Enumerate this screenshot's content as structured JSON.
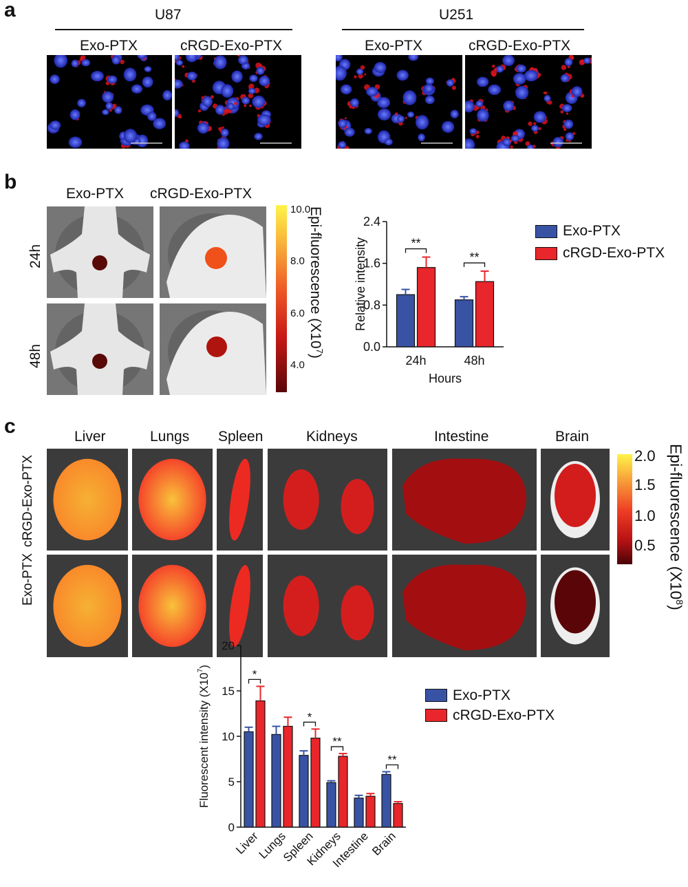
{
  "panel_a": {
    "letter": "a",
    "groups": [
      {
        "cell_line": "U87",
        "conditions": [
          "Exo-PTX",
          "cRGD-Exo-PTX"
        ]
      },
      {
        "cell_line": "U251",
        "conditions": [
          "Exo-PTX",
          "cRGD-Exo-PTX"
        ]
      }
    ]
  },
  "panel_b": {
    "letter": "b",
    "columns": [
      "Exo-PTX",
      "cRGD-Exo-PTX"
    ],
    "rows": [
      "24h",
      "48h"
    ],
    "colorbar": {
      "label": "Epi-fluorescence (X10",
      "exp": "7",
      "close": ")",
      "ticks": [
        "10.0",
        "8.0",
        "6.0",
        "4.0"
      ]
    },
    "legend": [
      "Exo-PTX",
      "cRGD-Exo-PTX"
    ]
  },
  "panel_c": {
    "letter": "c",
    "organs": [
      "Liver",
      "Lungs",
      "Spleen",
      "Kidneys",
      "Intestine",
      "Brain"
    ],
    "rows": [
      "cRGD-Exo-PTX",
      "Exo-PTX"
    ],
    "colorbar": {
      "label": "Epi-fluorescence (X10",
      "exp": "8",
      "close": ")",
      "ticks": [
        "2.0",
        "1.5",
        "1.0",
        "0.5"
      ]
    },
    "legend": [
      "Exo-PTX",
      "cRGD-Exo-PTX"
    ]
  },
  "colors": {
    "blue": "#3953a4",
    "red": "#e8262b"
  },
  "chart_data": [
    {
      "type": "bar",
      "categories": [
        "24h",
        "48h"
      ],
      "series": [
        {
          "name": "Exo-PTX",
          "values": [
            1.0,
            0.9
          ],
          "errors": [
            0.1,
            0.06
          ]
        },
        {
          "name": "cRGD-Exo-PTX",
          "values": [
            1.52,
            1.25
          ],
          "errors": [
            0.2,
            0.2
          ]
        }
      ],
      "ylabel": "Relative intensity",
      "xlabel": "Hours",
      "ylim": [
        0,
        2.4
      ],
      "yticks": [
        "0.0",
        "0.8",
        "1.6",
        "2.4"
      ],
      "significance": [
        "**",
        "**"
      ],
      "legend_position": "right"
    },
    {
      "type": "bar",
      "categories": [
        "Liver",
        "Lungs",
        "Spleen",
        "Kidneys",
        "Intestine",
        "Brain"
      ],
      "series": [
        {
          "name": "Exo-PTX",
          "values": [
            10.5,
            10.2,
            7.9,
            4.9,
            3.2,
            5.8
          ],
          "errors": [
            0.5,
            0.9,
            0.5,
            0.2,
            0.3,
            0.3
          ]
        },
        {
          "name": "cRGD-Exo-PTX",
          "values": [
            13.9,
            11.1,
            9.8,
            7.8,
            3.4,
            2.6
          ],
          "errors": [
            1.6,
            1.0,
            1.0,
            0.3,
            0.3,
            0.2
          ]
        }
      ],
      "ylabel": "Fluorescent intensity (X10",
      "ylabel_exp": "7",
      "ylabel_close": ")",
      "ylim": [
        0,
        20
      ],
      "yticks": [
        "0",
        "5",
        "10",
        "15",
        "20"
      ],
      "significance": [
        "*",
        "",
        "*",
        "**",
        "",
        "**"
      ],
      "legend_position": "right"
    }
  ]
}
